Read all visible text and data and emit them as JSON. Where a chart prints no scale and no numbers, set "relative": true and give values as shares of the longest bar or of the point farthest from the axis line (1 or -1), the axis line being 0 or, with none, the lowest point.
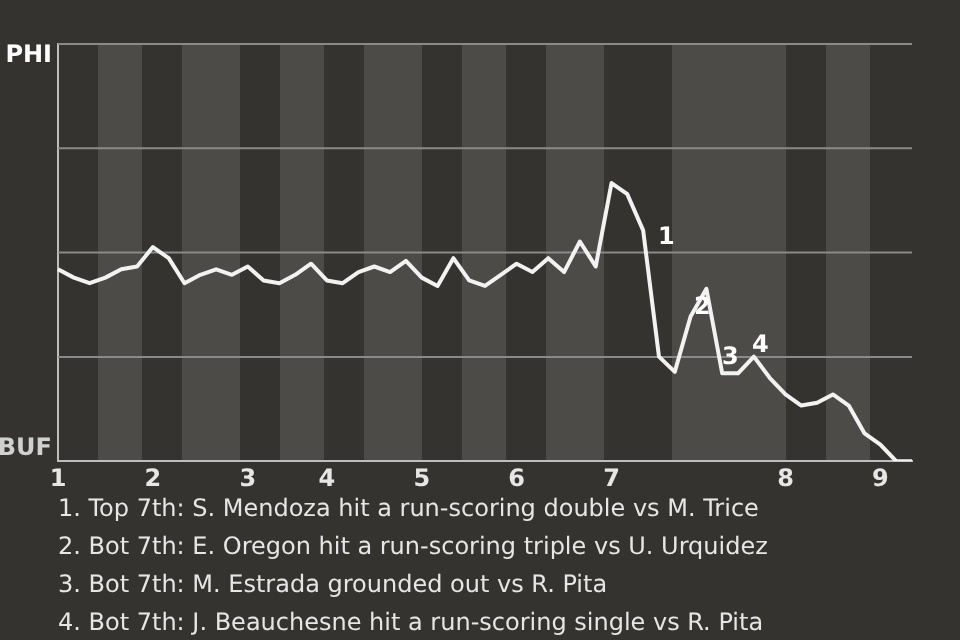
{
  "chart_data": {
    "type": "line",
    "color": "#f2f2f2",
    "relative": true,
    "categories": [
      "1",
      null,
      null,
      null,
      null,
      null,
      "2",
      null,
      null,
      null,
      null,
      null,
      "3",
      null,
      null,
      null,
      null,
      "4",
      null,
      null,
      null,
      null,
      null,
      "5",
      null,
      null,
      null,
      null,
      null,
      "6",
      null,
      null,
      null,
      null,
      null,
      "7",
      null,
      null,
      null,
      null,
      null,
      null,
      null,
      null,
      null,
      null,
      "8",
      null,
      null,
      null,
      null,
      null,
      "9",
      null,
      null
    ],
    "values": [
      0.69,
      0.66,
      0.64,
      0.66,
      0.69,
      0.7,
      0.77,
      0.73,
      0.64,
      0.67,
      0.69,
      0.67,
      0.7,
      0.65,
      0.64,
      0.67,
      0.71,
      0.65,
      0.64,
      0.68,
      0.7,
      0.68,
      0.72,
      0.66,
      0.63,
      0.73,
      0.65,
      0.63,
      0.67,
      0.71,
      0.68,
      0.73,
      0.68,
      0.79,
      0.7,
      1,
      0.96,
      0.83,
      0.376,
      0.321,
      0.52,
      0.62,
      0.316,
      0.316,
      0.376,
      0.3,
      0.24,
      0.2,
      0.21,
      0.24,
      0.2,
      0.1,
      0.06,
      0,
      0
    ],
    "marker": "none",
    "line_style": "solid",
    "legend": false,
    "ref_lines": [
      {
        "axis": "y",
        "value": 0.375,
        "color": "#8a8a8a"
      },
      {
        "axis": "y",
        "value": 0.75,
        "color": "#8a8a8a"
      },
      {
        "axis": "y",
        "value": 1.125,
        "color": "#8a8a8a"
      },
      {
        "axis": "y",
        "value": 1.5,
        "color": "#8a8a8a"
      }
    ],
    "annotations": [
      "PHI",
      "BUF",
      "1",
      "2",
      "3",
      "4",
      "1. Top 7th: S. Mendoza hit a run-scoring double vs M. Trice",
      "2. Bot 7th: E. Oregon hit a run-scoring triple vs U. Urquidez",
      "3. Bot 7th: M. Estrada grounded out vs R. Pita",
      "4. Bot 7th: J. Beauchesne hit a run-scoring single vs R. Pita"
    ]
  }
}
